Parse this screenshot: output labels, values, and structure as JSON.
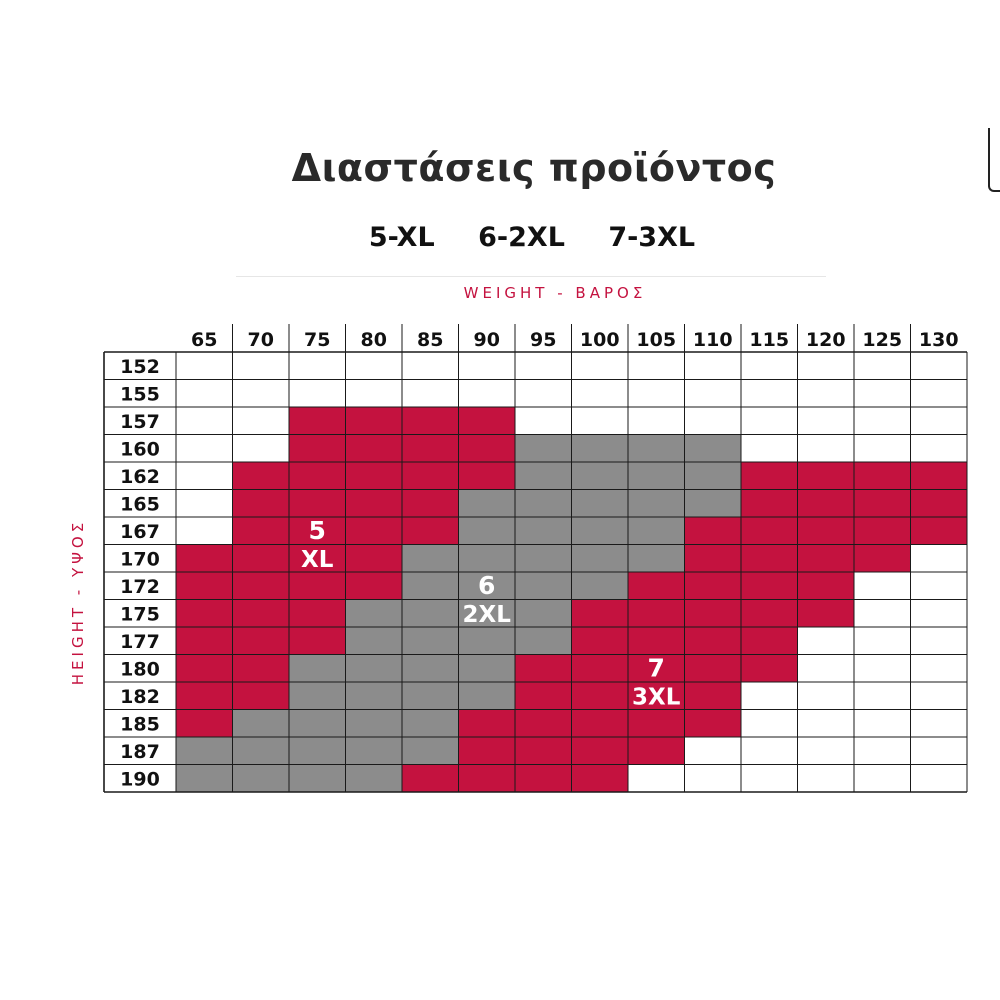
{
  "title": "Διαστάσεις προϊόντος",
  "sizes": [
    "5-XL",
    "6-2XL",
    "7-3XL"
  ],
  "chart_data": {
    "type": "heatmap",
    "title": "Διαστάσεις προϊόντος",
    "subtitle": [
      "5-XL",
      "6-2XL",
      "7-3XL"
    ],
    "xlabel": "WEIGHT - ΒΑΡΟΣ",
    "ylabel": "HEIGHT - ΥΨΟΣ",
    "x": [
      "65",
      "70",
      "75",
      "80",
      "85",
      "90",
      "95",
      "100",
      "105",
      "110",
      "115",
      "120",
      "125",
      "130"
    ],
    "y": [
      "152",
      "155",
      "157",
      "160",
      "162",
      "165",
      "167",
      "170",
      "172",
      "175",
      "177",
      "180",
      "182",
      "185",
      "187",
      "190"
    ],
    "colors": {
      "5": "#c4123f",
      "6": "#8c8c8c",
      "7": "#c4123f",
      "0": "#ffffff"
    },
    "grid": [
      [
        0,
        0,
        0,
        0,
        0,
        0,
        0,
        0,
        0,
        0,
        0,
        0,
        0,
        0
      ],
      [
        0,
        0,
        0,
        0,
        0,
        0,
        0,
        0,
        0,
        0,
        0,
        0,
        0,
        0
      ],
      [
        0,
        0,
        5,
        5,
        5,
        5,
        0,
        0,
        0,
        0,
        0,
        0,
        0,
        0
      ],
      [
        0,
        0,
        5,
        5,
        5,
        5,
        6,
        6,
        6,
        6,
        0,
        0,
        0,
        0
      ],
      [
        0,
        5,
        5,
        5,
        5,
        5,
        6,
        6,
        6,
        6,
        7,
        7,
        7,
        7
      ],
      [
        0,
        5,
        5,
        5,
        5,
        6,
        6,
        6,
        6,
        6,
        7,
        7,
        7,
        7
      ],
      [
        0,
        5,
        5,
        5,
        5,
        6,
        6,
        6,
        6,
        7,
        7,
        7,
        7,
        7
      ],
      [
        5,
        5,
        5,
        5,
        6,
        6,
        6,
        6,
        6,
        7,
        7,
        7,
        7,
        0
      ],
      [
        5,
        5,
        5,
        5,
        6,
        6,
        6,
        6,
        7,
        7,
        7,
        7,
        0,
        0
      ],
      [
        5,
        5,
        5,
        6,
        6,
        6,
        6,
        7,
        7,
        7,
        7,
        7,
        0,
        0
      ],
      [
        5,
        5,
        5,
        6,
        6,
        6,
        6,
        7,
        7,
        7,
        7,
        0,
        0,
        0
      ],
      [
        5,
        5,
        6,
        6,
        6,
        6,
        7,
        7,
        7,
        7,
        7,
        0,
        0,
        0
      ],
      [
        5,
        5,
        6,
        6,
        6,
        6,
        7,
        7,
        7,
        7,
        0,
        0,
        0,
        0
      ],
      [
        5,
        6,
        6,
        6,
        6,
        7,
        7,
        7,
        7,
        7,
        0,
        0,
        0,
        0
      ],
      [
        6,
        6,
        6,
        6,
        6,
        7,
        7,
        7,
        7,
        0,
        0,
        0,
        0,
        0
      ],
      [
        6,
        6,
        6,
        6,
        7,
        7,
        7,
        7,
        0,
        0,
        0,
        0,
        0,
        0
      ]
    ],
    "region_labels": [
      {
        "number": "5",
        "size": "XL"
      },
      {
        "number": "6",
        "size": "2XL"
      },
      {
        "number": "7",
        "size": "3XL"
      }
    ],
    "grid_lines": true
  }
}
